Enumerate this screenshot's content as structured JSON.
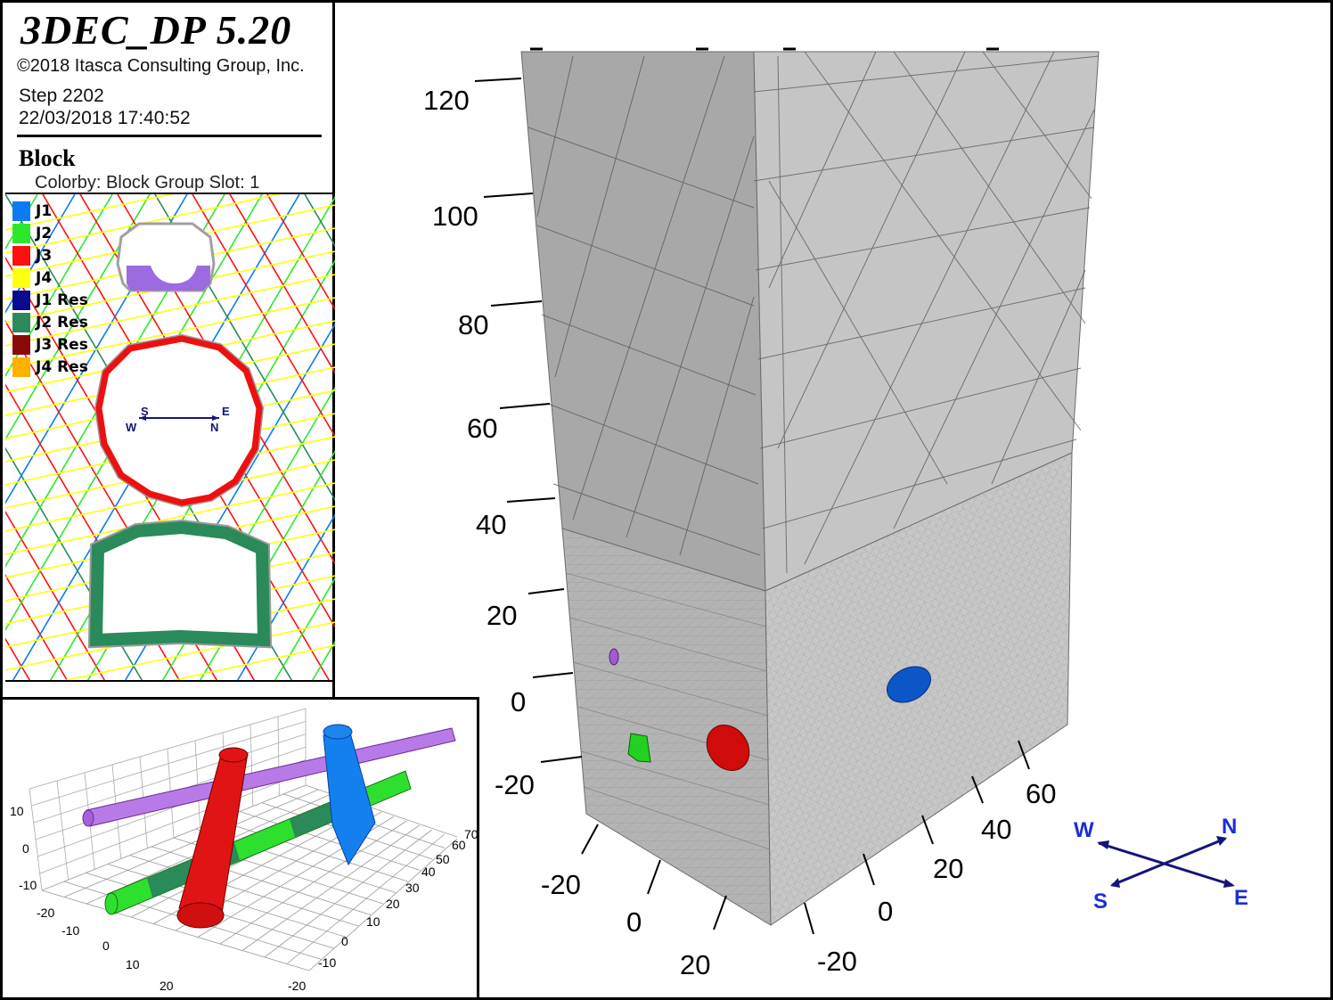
{
  "header": {
    "title": "3DEC_DP 5.20",
    "copyright": "©2018 Itasca Consulting Group, Inc.",
    "step": "Step 2202",
    "datetime": "22/03/2018 17:40:52"
  },
  "plot": {
    "heading": "Block",
    "colorby": "Colorby: Block Group Slot: 1"
  },
  "legend": [
    {
      "label": "J1",
      "color": "#0a7cf0"
    },
    {
      "label": "J2",
      "color": "#2ce82c"
    },
    {
      "label": "J3",
      "color": "#ff1010"
    },
    {
      "label": "J4",
      "color": "#ffff10"
    },
    {
      "label": "J1 Res",
      "color": "#0a0a90"
    },
    {
      "label": "J2 Res",
      "color": "#2a8a5a"
    },
    {
      "label": "J3 Res",
      "color": "#8a0a0a"
    },
    {
      "label": "J4 Res",
      "color": "#ffb000"
    }
  ],
  "mini_compass": {
    "w": "W",
    "s": "S",
    "e": "E",
    "n": "N"
  },
  "main_axes": {
    "z_ticks": [
      "120",
      "100",
      "80",
      "60",
      "40",
      "20",
      "0",
      "-20"
    ],
    "x_ticks": [
      "-20",
      "0",
      "20"
    ],
    "y_ticks": [
      "60",
      "40",
      "20",
      "0",
      "-20"
    ]
  },
  "compass": {
    "w": "W",
    "n": "N",
    "s": "S",
    "e": "E"
  },
  "inset_axes": {
    "z_ticks": [
      "10",
      "0",
      "-10",
      "-20"
    ],
    "x_ticks": [
      "-10",
      "0",
      "10",
      "20"
    ],
    "y_ticks": [
      "70",
      "60",
      "50",
      "40",
      "30",
      "20",
      "10",
      "0",
      "-10",
      "-20"
    ]
  },
  "colors": {
    "block_front": "#a9a9a9",
    "block_side": "#c4c4c4",
    "compass": "#1a2fd6",
    "compass_line": "#14147a"
  }
}
